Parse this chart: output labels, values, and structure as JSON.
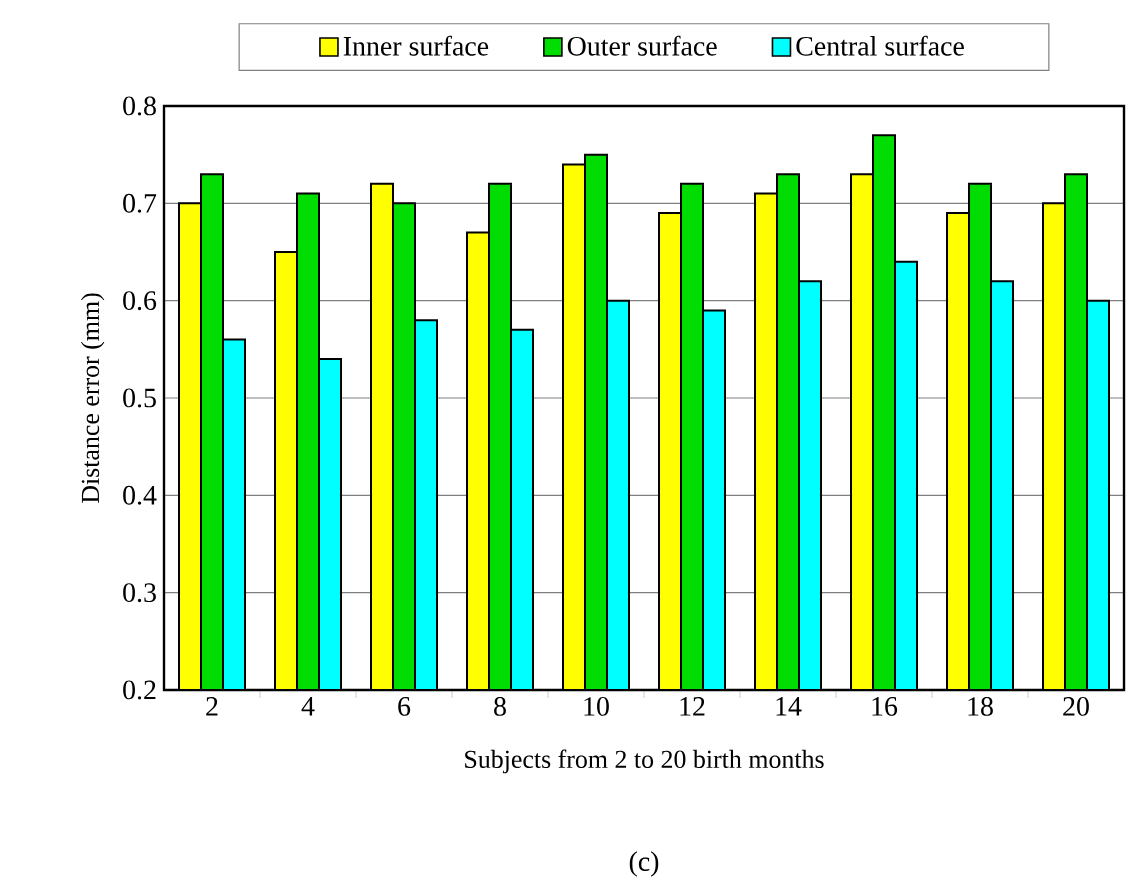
{
  "chart_data": {
    "type": "bar",
    "categories": [
      "2",
      "4",
      "6",
      "8",
      "10",
      "12",
      "14",
      "16",
      "18",
      "20"
    ],
    "series": [
      {
        "name": "Inner surface",
        "color": "#ffff00",
        "values": [
          0.7,
          0.65,
          0.72,
          0.67,
          0.74,
          0.69,
          0.71,
          0.73,
          0.69,
          0.7
        ]
      },
      {
        "name": "Outer surface",
        "color": "#00dd00",
        "values": [
          0.73,
          0.71,
          0.7,
          0.72,
          0.75,
          0.72,
          0.73,
          0.77,
          0.72,
          0.73
        ]
      },
      {
        "name": "Central surface",
        "color": "#00ffff",
        "values": [
          0.56,
          0.54,
          0.58,
          0.57,
          0.6,
          0.59,
          0.62,
          0.64,
          0.62,
          0.6
        ]
      }
    ],
    "xlabel": "Subjects from 2 to 20 birth months",
    "ylabel": "Distance error (mm)",
    "ylim": [
      0.2,
      0.8
    ],
    "yticks": [
      0.2,
      0.3,
      0.4,
      0.5,
      0.6,
      0.7,
      0.8
    ],
    "grid": "y",
    "legend": "top",
    "annotations": [
      "(c)"
    ]
  }
}
